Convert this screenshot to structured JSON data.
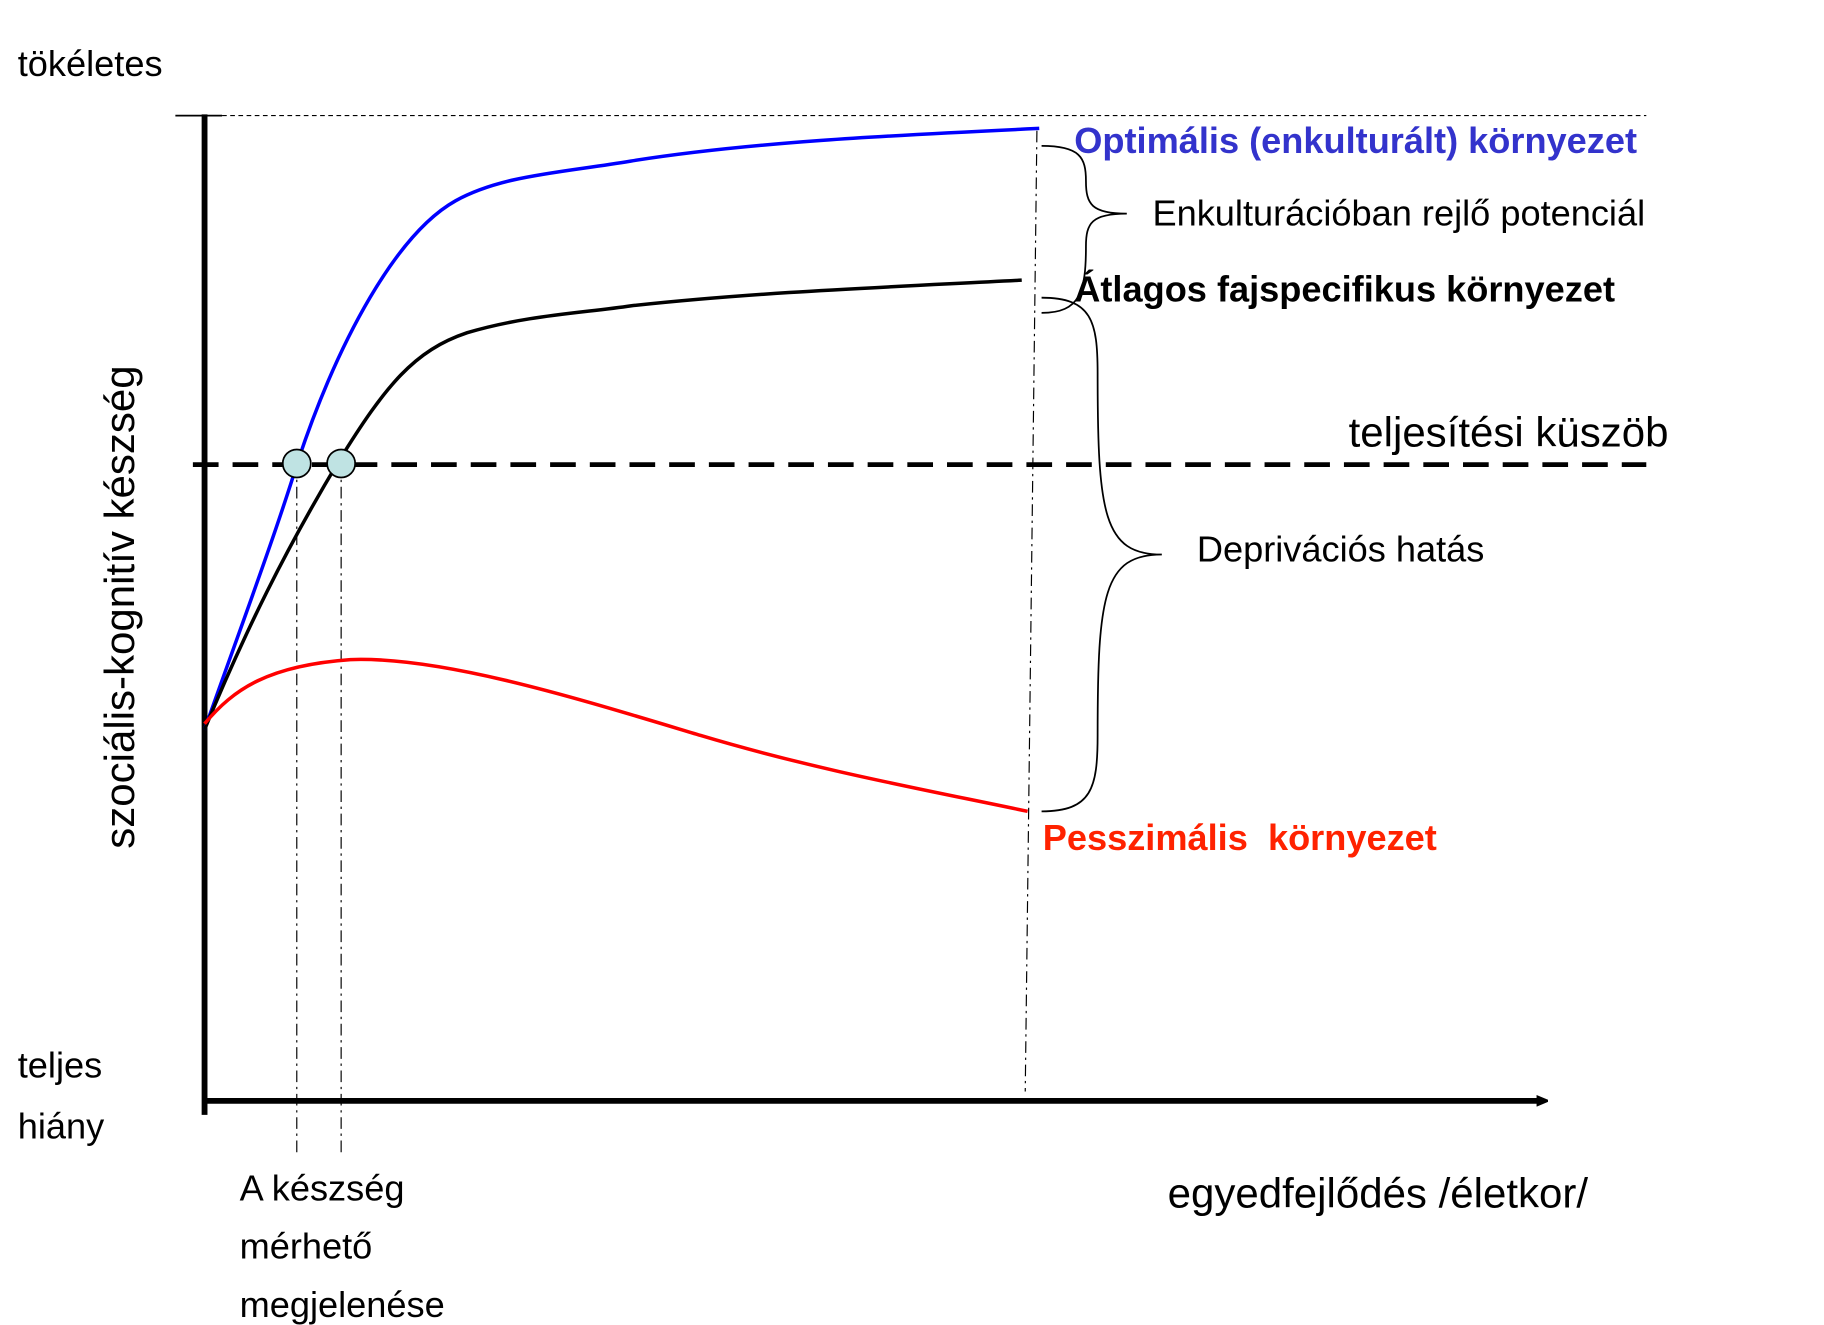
{
  "y_axis": {
    "label": "szociális-kognitív készség",
    "top": "tökéletes",
    "bottom": [
      "teljes",
      "hiány"
    ]
  },
  "x_axis": {
    "label": "egyedfejlődés /életkor/",
    "marker_label": [
      "A készség",
      "mérhető",
      "megjelenése"
    ]
  },
  "curves": {
    "optimal": "Optimális (enkulturált) környezet",
    "average": "Átlagos fajspecifikus környezet",
    "pessimal": "Pesszimális  környezet"
  },
  "threshold": "teljesítési küszöb",
  "braces": {
    "upper": "Enkulturációban rejlő potenciál",
    "lower": "Deprivációs hatás"
  }
}
